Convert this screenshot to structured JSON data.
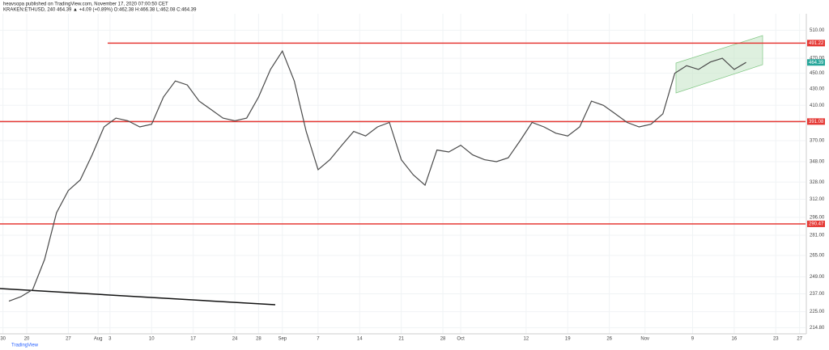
{
  "chart_data": {
    "type": "line",
    "title": "heavsopa published on TradingView.com, November 17, 2020 07:00:50 CET",
    "subtitle": "KRAKEN:ETHUSD, 240  464.39 ▲ +4.09 (+0.89%) O:462.38 H:466.38 L:462.08 C:464.39",
    "footer": "TradingView",
    "log_scale": true,
    "color": "#4a4a4a",
    "x": [
      4,
      6,
      8,
      10,
      12,
      14,
      16,
      18,
      20,
      22,
      24,
      26,
      28,
      30,
      32,
      34,
      36,
      38,
      40,
      42,
      44,
      46,
      48,
      50,
      52,
      54,
      56,
      58,
      60,
      62,
      64,
      66,
      68,
      70,
      72,
      74,
      76,
      78,
      80,
      82,
      84,
      86,
      88,
      90,
      92,
      94,
      96,
      98,
      100,
      102,
      104,
      106,
      108,
      110,
      112,
      114,
      116,
      118,
      120,
      122,
      124,
      126,
      128
    ],
    "values": [
      232,
      235,
      240,
      262,
      300,
      320,
      330,
      355,
      385,
      395,
      392,
      385,
      388,
      420,
      440,
      435,
      415,
      405,
      395,
      392,
      395,
      420,
      455,
      480,
      440,
      380,
      340,
      350,
      365,
      380,
      375,
      385,
      390,
      350,
      335,
      325,
      360,
      358,
      365,
      355,
      350,
      348,
      352,
      370,
      390,
      385,
      378,
      375,
      385,
      415,
      410,
      400,
      390,
      385,
      388,
      400,
      450,
      460,
      455,
      465,
      470,
      455,
      464.39
    ],
    "xlim": [
      2.5,
      138
    ],
    "xticks": [
      {
        "value": 3,
        "label": "30"
      },
      {
        "value": 7,
        "label": "20"
      },
      {
        "value": 14,
        "label": "27"
      },
      {
        "value": 19,
        "label": "Aug"
      },
      {
        "value": 21,
        "label": "3"
      },
      {
        "value": 28,
        "label": "10"
      },
      {
        "value": 35,
        "label": "17"
      },
      {
        "value": 42,
        "label": "24"
      },
      {
        "value": 46,
        "label": "28"
      },
      {
        "value": 50,
        "label": "Sep"
      },
      {
        "value": 56,
        "label": "7"
      },
      {
        "value": 63,
        "label": "14"
      },
      {
        "value": 70,
        "label": "21"
      },
      {
        "value": 77,
        "label": "28"
      },
      {
        "value": 80,
        "label": "Oct"
      },
      {
        "value": 91,
        "label": "12"
      },
      {
        "value": 98,
        "label": "19"
      },
      {
        "value": 105,
        "label": "26"
      },
      {
        "value": 111,
        "label": "Nov"
      },
      {
        "value": 119,
        "label": "9"
      },
      {
        "value": 126,
        "label": "16"
      },
      {
        "value": 133,
        "label": "23"
      },
      {
        "value": 137,
        "label": "27"
      }
    ],
    "ylim": [
      211,
      535
    ],
    "yticks": [
      {
        "value": 510,
        "label": "510.00"
      },
      {
        "value": 470,
        "label": "470.00"
      },
      {
        "value": 450,
        "label": "450.00"
      },
      {
        "value": 430,
        "label": "430.00"
      },
      {
        "value": 410,
        "label": "410.00"
      },
      {
        "value": 390,
        "label": "390.00"
      },
      {
        "value": 370,
        "label": "370.00"
      },
      {
        "value": 348,
        "label": "348.00"
      },
      {
        "value": 328,
        "label": "328.00"
      },
      {
        "value": 312,
        "label": "312.00"
      },
      {
        "value": 296,
        "label": "296.00"
      },
      {
        "value": 281,
        "label": "281.00"
      },
      {
        "value": 265,
        "label": "265.00"
      },
      {
        "value": 249,
        "label": "249.00"
      },
      {
        "value": 237,
        "label": "237.00"
      },
      {
        "value": 225,
        "label": "225.00"
      },
      {
        "value": 214.8,
        "label": "214.80"
      }
    ],
    "hlines": [
      491.22,
      391.08,
      290.47
    ],
    "hline_color": "#e53935",
    "last": 464.39,
    "last_color": "#26a69a",
    "grid": true
  }
}
